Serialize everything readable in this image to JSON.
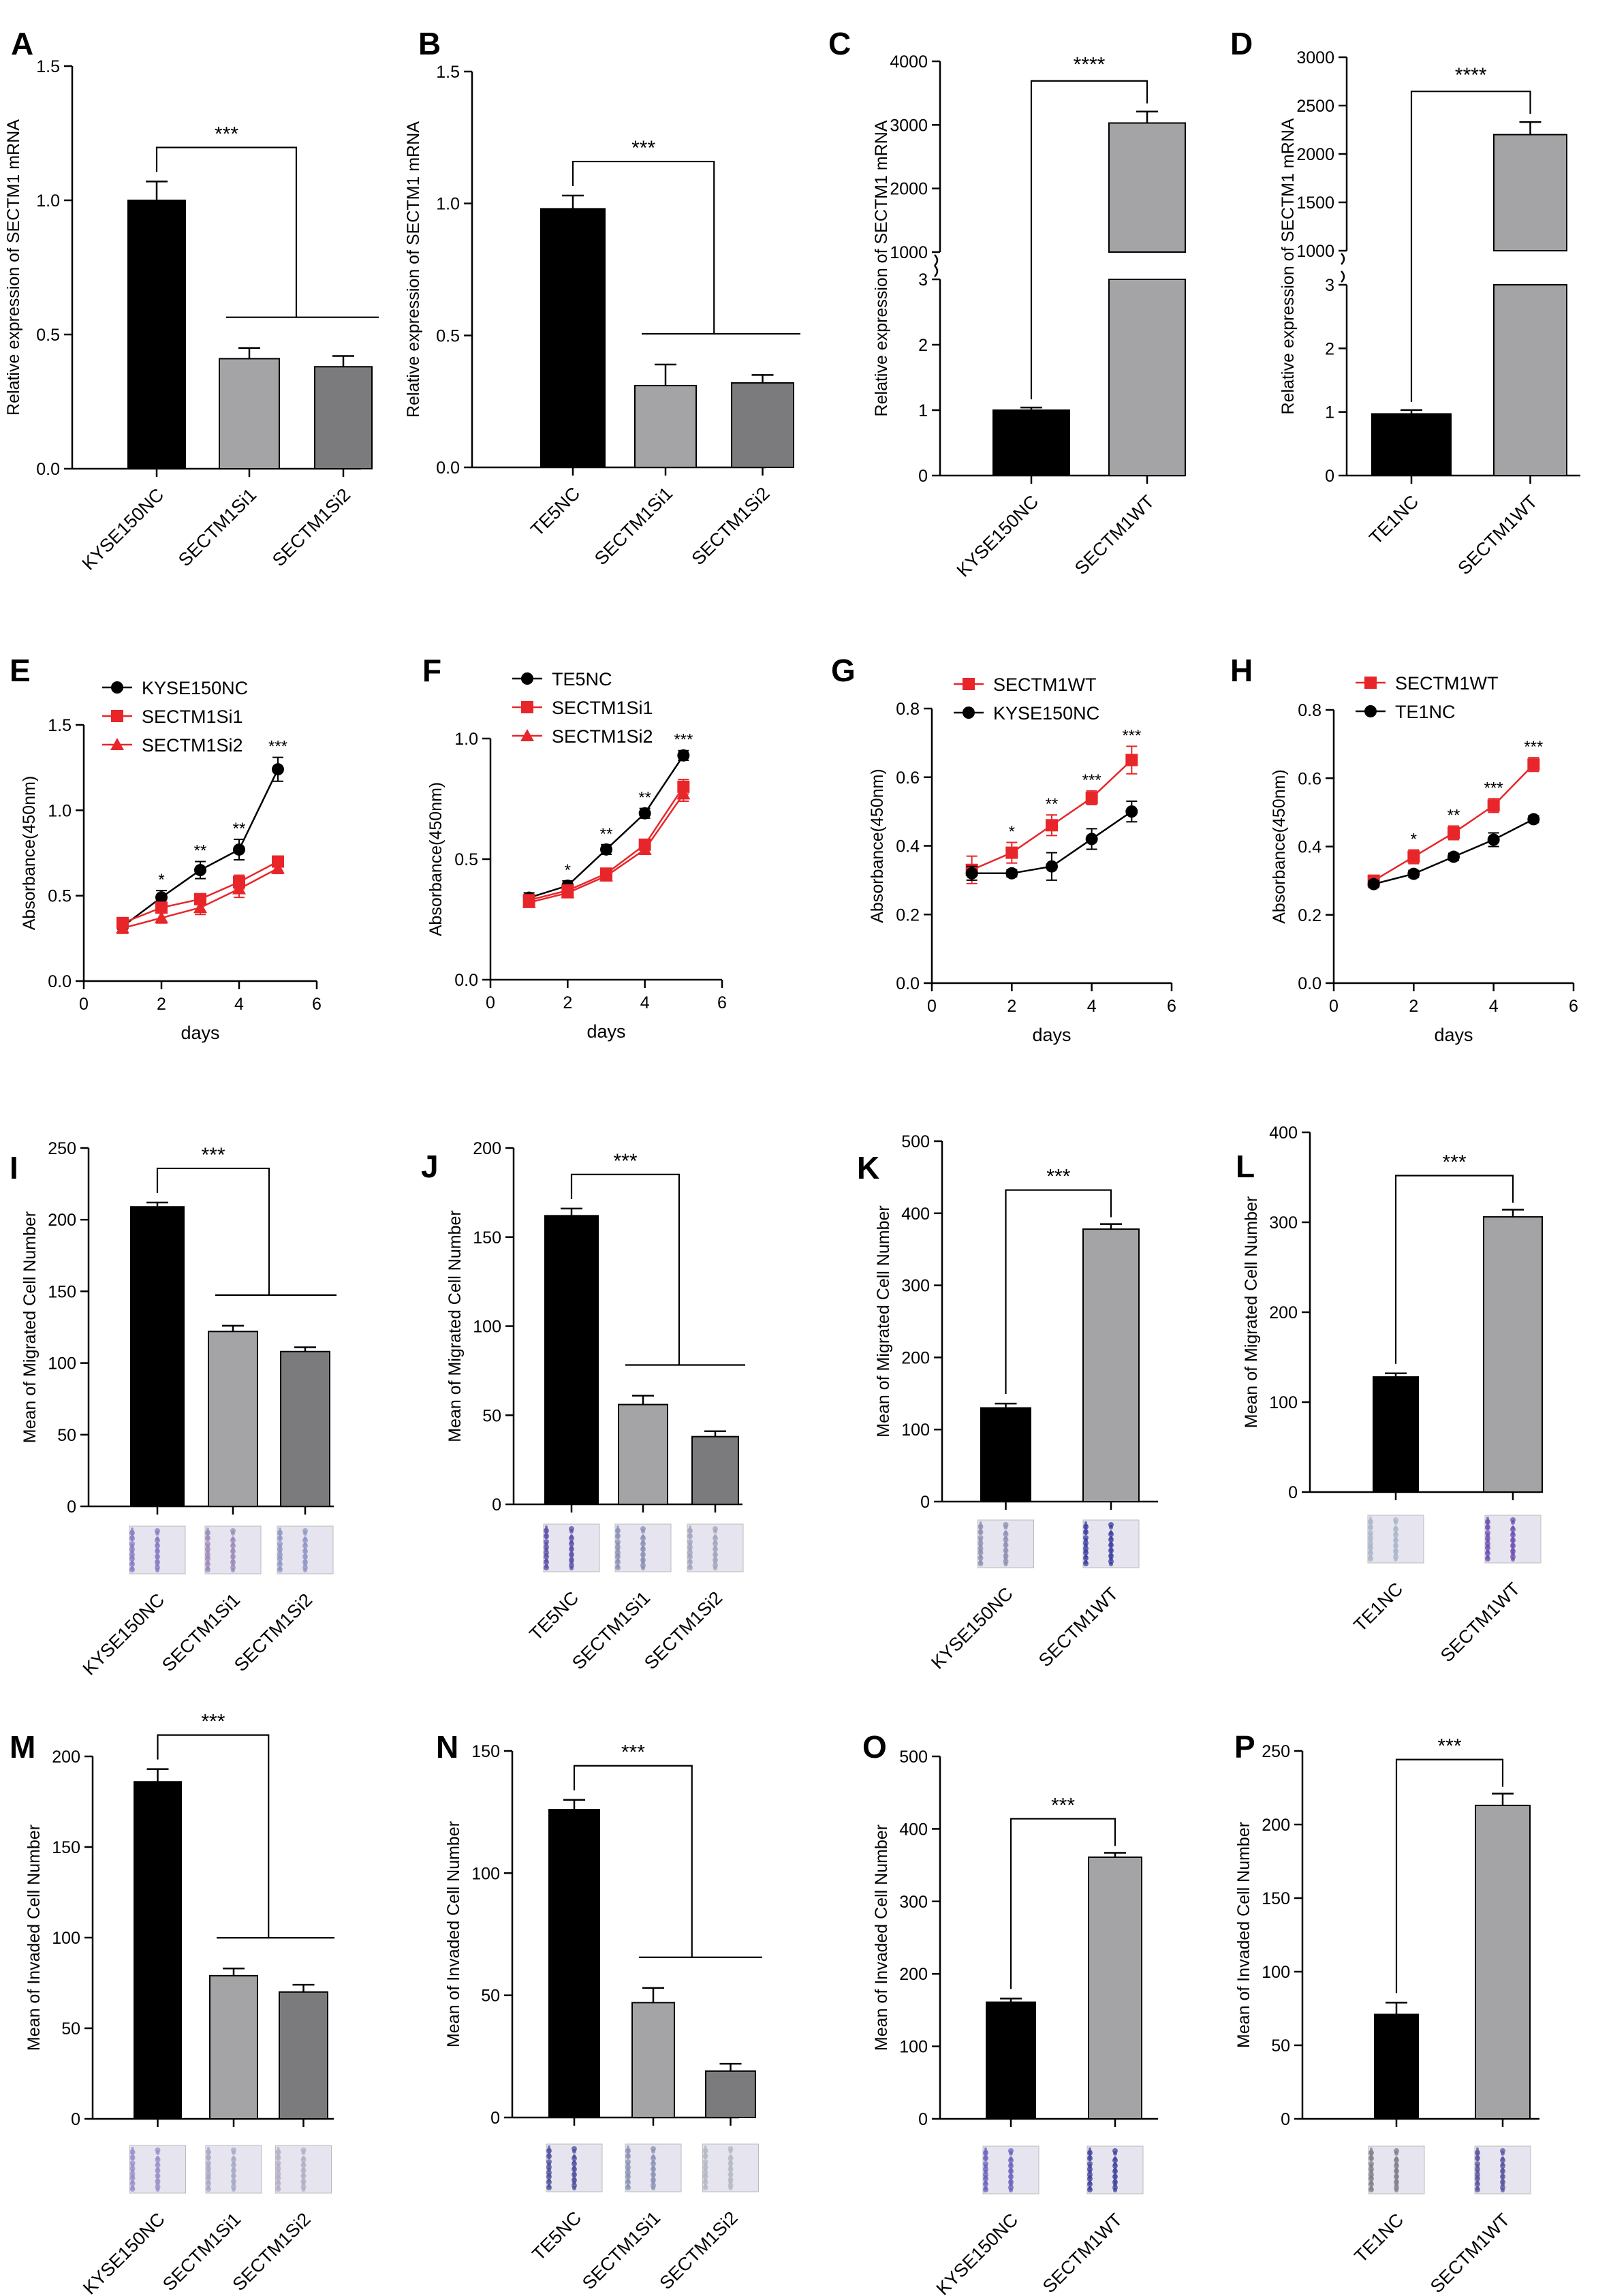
{
  "colors": {
    "black": "#000000",
    "gray_light": "#a4a4a6",
    "gray_dark": "#7b7b7d",
    "red": "#e8262a",
    "stain_purple": "#6d5fb3"
  },
  "chart_data": [
    {
      "id": "A",
      "type": "bar",
      "title": "A",
      "ylabel": "Relative expression of SECTM1 mRNA",
      "categories": [
        "KYSE150NC",
        "SECTM1Si1",
        "SECTM1Si2"
      ],
      "values": [
        1.0,
        0.41,
        0.38
      ],
      "errors": [
        0.07,
        0.04,
        0.04
      ],
      "ylim": [
        0,
        1.5
      ],
      "yticks": [
        0.0,
        0.5,
        1.0,
        1.5
      ],
      "ytick_labels": [
        "0.0",
        "0.5",
        "1.0",
        "1.5"
      ],
      "significance": "***",
      "thumbnails": false
    },
    {
      "id": "B",
      "type": "bar",
      "title": "B",
      "ylabel": "Relative expression of SECTM1 mRNA",
      "categories": [
        "TE5NC",
        "SECTM1Si1",
        "SECTM1Si2"
      ],
      "values": [
        0.98,
        0.31,
        0.32
      ],
      "errors": [
        0.05,
        0.08,
        0.03
      ],
      "ylim": [
        0,
        1.5
      ],
      "yticks": [
        0.0,
        0.5,
        1.0,
        1.5
      ],
      "ytick_labels": [
        "0.0",
        "0.5",
        "1.0",
        "1.5"
      ],
      "significance": "***",
      "thumbnails": false
    },
    {
      "id": "C",
      "type": "bar",
      "title": "C",
      "ylabel": "Relative expression of SECTM1 mRNA",
      "categories": [
        "KYSE150NC",
        "SECTM1WT"
      ],
      "values": [
        1.0,
        3030
      ],
      "errors": [
        0.04,
        180
      ],
      "broken_axis": {
        "lower": [
          0,
          3
        ],
        "upper": [
          1000,
          4000
        ]
      },
      "yticks_lower": [
        0,
        1,
        2,
        3
      ],
      "yticks_upper": [
        1000,
        2000,
        3000,
        4000
      ],
      "ytick_labels_lower": [
        "0",
        "1",
        "2",
        "3"
      ],
      "ytick_labels_upper": [
        "1000",
        "2000",
        "3000",
        "4000"
      ],
      "significance": "****",
      "thumbnails": false
    },
    {
      "id": "D",
      "type": "bar",
      "title": "D",
      "ylabel": "Relative expression of SECTM1 mRNA",
      "categories": [
        "TE1NC",
        "SECTM1WT"
      ],
      "values": [
        0.97,
        2200
      ],
      "errors": [
        0.06,
        130
      ],
      "broken_axis": {
        "lower": [
          0,
          3
        ],
        "upper": [
          1000,
          3000
        ]
      },
      "yticks_lower": [
        0,
        1,
        2,
        3
      ],
      "yticks_upper": [
        1000,
        1500,
        2000,
        2500,
        3000
      ],
      "ytick_labels_lower": [
        "0",
        "1",
        "2",
        "3"
      ],
      "ytick_labels_upper": [
        "1000",
        "1500",
        "2000",
        "2500",
        "3000"
      ],
      "significance": "****",
      "thumbnails": false
    },
    {
      "id": "E",
      "type": "line",
      "title": "E",
      "xlabel": "days",
      "ylabel": "Absorbance(450nm)",
      "x": [
        1,
        2,
        3,
        4,
        5
      ],
      "xlim": [
        0,
        6
      ],
      "xticks": [
        0,
        2,
        4,
        6
      ],
      "xtick_labels": [
        "0",
        "2",
        "4",
        "6"
      ],
      "ylim": [
        0,
        1.5
      ],
      "yticks": [
        0.0,
        0.5,
        1.0,
        1.5
      ],
      "ytick_labels": [
        "0.0",
        "0.5",
        "1.0",
        "1.5"
      ],
      "series": [
        {
          "name": "KYSE150NC",
          "color": "#000000",
          "marker": "circle",
          "values": [
            0.32,
            0.49,
            0.65,
            0.77,
            1.24
          ],
          "errors": [
            0.03,
            0.04,
            0.05,
            0.06,
            0.07
          ]
        },
        {
          "name": "SECTM1Si1",
          "color": "#e8262a",
          "marker": "square",
          "values": [
            0.34,
            0.43,
            0.48,
            0.58,
            0.7
          ],
          "errors": [
            0.03,
            0.03,
            0.03,
            0.04,
            0.03
          ]
        },
        {
          "name": "SECTM1Si2",
          "color": "#e8262a",
          "marker": "triangle",
          "values": [
            0.31,
            0.37,
            0.43,
            0.54,
            0.66
          ],
          "errors": [
            0.03,
            0.03,
            0.04,
            0.05,
            0.03
          ]
        }
      ],
      "annotations": [
        {
          "x": 2,
          "text": "*"
        },
        {
          "x": 3,
          "text": "**"
        },
        {
          "x": 4,
          "text": "**"
        },
        {
          "x": 5,
          "text": "***"
        }
      ]
    },
    {
      "id": "F",
      "type": "line",
      "title": "F",
      "xlabel": "days",
      "ylabel": "Absorbance(450nm)",
      "x": [
        1,
        2,
        3,
        4,
        5
      ],
      "xlim": [
        0,
        6
      ],
      "xticks": [
        0,
        2,
        4,
        6
      ],
      "xtick_labels": [
        "0",
        "2",
        "4",
        "6"
      ],
      "ylim": [
        0,
        1.0
      ],
      "yticks": [
        0.0,
        0.5,
        1.0
      ],
      "ytick_labels": [
        "0.0",
        "0.5",
        "1.0"
      ],
      "series": [
        {
          "name": "TE5NC",
          "color": "#000000",
          "marker": "circle",
          "values": [
            0.34,
            0.39,
            0.54,
            0.69,
            0.93
          ],
          "errors": [
            0.02,
            0.02,
            0.02,
            0.02,
            0.02
          ]
        },
        {
          "name": "SECTM1Si1",
          "color": "#e8262a",
          "marker": "square",
          "values": [
            0.33,
            0.37,
            0.44,
            0.56,
            0.8
          ],
          "errors": [
            0.02,
            0.02,
            0.02,
            0.02,
            0.03
          ]
        },
        {
          "name": "SECTM1Si2",
          "color": "#e8262a",
          "marker": "triangle",
          "values": [
            0.32,
            0.36,
            0.43,
            0.54,
            0.77
          ],
          "errors": [
            0.02,
            0.02,
            0.02,
            0.02,
            0.03
          ]
        }
      ],
      "annotations": [
        {
          "x": 2,
          "text": "*"
        },
        {
          "x": 3,
          "text": "**"
        },
        {
          "x": 4,
          "text": "**"
        },
        {
          "x": 5,
          "text": "***"
        }
      ]
    },
    {
      "id": "G",
      "type": "line",
      "title": "G",
      "xlabel": "days",
      "ylabel": "Absorbance(450nm)",
      "x": [
        1,
        2,
        3,
        4,
        5
      ],
      "xlim": [
        0,
        6
      ],
      "xticks": [
        0,
        2,
        4,
        6
      ],
      "xtick_labels": [
        "0",
        "2",
        "4",
        "6"
      ],
      "ylim": [
        0,
        0.8
      ],
      "yticks": [
        0.0,
        0.2,
        0.4,
        0.6,
        0.8
      ],
      "ytick_labels": [
        "0.0",
        "0.2",
        "0.4",
        "0.6",
        "0.8"
      ],
      "series": [
        {
          "name": "SECTM1WT",
          "color": "#e8262a",
          "marker": "square",
          "values": [
            0.33,
            0.38,
            0.46,
            0.54,
            0.65
          ],
          "errors": [
            0.04,
            0.03,
            0.03,
            0.02,
            0.04
          ]
        },
        {
          "name": "KYSE150NC",
          "color": "#000000",
          "marker": "circle",
          "values": [
            0.32,
            0.32,
            0.34,
            0.42,
            0.5
          ],
          "errors": [
            0.02,
            0.01,
            0.04,
            0.03,
            0.03
          ]
        }
      ],
      "annotations": [
        {
          "x": 2,
          "text": "*"
        },
        {
          "x": 3,
          "text": "**"
        },
        {
          "x": 4,
          "text": "***"
        },
        {
          "x": 5,
          "text": "***"
        }
      ]
    },
    {
      "id": "H",
      "type": "line",
      "title": "H",
      "xlabel": "days",
      "ylabel": "Absorbance(450nm)",
      "x": [
        1,
        2,
        3,
        4,
        5
      ],
      "xlim": [
        0,
        6
      ],
      "xticks": [
        0,
        2,
        4,
        6
      ],
      "xtick_labels": [
        "0",
        "2",
        "4",
        "6"
      ],
      "ylim": [
        0,
        0.8
      ],
      "yticks": [
        0.0,
        0.2,
        0.4,
        0.6,
        0.8
      ],
      "ytick_labels": [
        "0.0",
        "0.2",
        "0.4",
        "0.6",
        "0.8"
      ],
      "series": [
        {
          "name": "SECTM1WT",
          "color": "#e8262a",
          "marker": "square",
          "values": [
            0.3,
            0.37,
            0.44,
            0.52,
            0.64
          ],
          "errors": [
            0.01,
            0.02,
            0.02,
            0.02,
            0.02
          ]
        },
        {
          "name": "TE1NC",
          "color": "#000000",
          "marker": "circle",
          "values": [
            0.29,
            0.32,
            0.37,
            0.42,
            0.48
          ],
          "errors": [
            0.01,
            0.01,
            0.01,
            0.02,
            0.01
          ]
        }
      ],
      "annotations": [
        {
          "x": 2,
          "text": "*"
        },
        {
          "x": 3,
          "text": "**"
        },
        {
          "x": 4,
          "text": "***"
        },
        {
          "x": 5,
          "text": "***"
        }
      ]
    },
    {
      "id": "I",
      "type": "bar",
      "title": "I",
      "ylabel": "Mean of Migrated Cell Number",
      "categories": [
        "KYSE150NC",
        "SECTM1Si1",
        "SECTM1Si2"
      ],
      "values": [
        209,
        122,
        108
      ],
      "errors": [
        3,
        4,
        3
      ],
      "ylim": [
        0,
        250
      ],
      "yticks": [
        0,
        50,
        100,
        150,
        200,
        250
      ],
      "ytick_labels": [
        "0",
        "50",
        "100",
        "150",
        "200",
        "250"
      ],
      "significance": "***",
      "thumbnails": true,
      "thumb_colors": [
        "#8879c4",
        "#9b8aba",
        "#8f96c6"
      ]
    },
    {
      "id": "J",
      "type": "bar",
      "title": "J",
      "ylabel": "Mean of Migrated Cell Number",
      "categories": [
        "TE5NC",
        "SECTM1Si1",
        "SECTM1Si2"
      ],
      "values": [
        162,
        56,
        38
      ],
      "errors": [
        4,
        5,
        3
      ],
      "ylim": [
        0,
        200
      ],
      "yticks": [
        0,
        50,
        100,
        150,
        200
      ],
      "ytick_labels": [
        "0",
        "50",
        "100",
        "150",
        "200"
      ],
      "significance": "***",
      "thumbnails": true,
      "thumb_colors": [
        "#5a4fa8",
        "#8a8fb4",
        "#a1a4bc"
      ]
    },
    {
      "id": "K",
      "type": "bar",
      "title": "K",
      "ylabel": "Mean of Migrated Cell Number",
      "categories": [
        "KYSE150NC",
        "SECTM1WT"
      ],
      "values": [
        130,
        378
      ],
      "errors": [
        6,
        7
      ],
      "ylim": [
        0,
        500
      ],
      "yticks": [
        0,
        100,
        200,
        300,
        400,
        500
      ],
      "ytick_labels": [
        "0",
        "100",
        "200",
        "300",
        "400",
        "500"
      ],
      "significance": "***",
      "thumbnails": true,
      "thumb_colors": [
        "#8d8fb2",
        "#3c3fa2"
      ]
    },
    {
      "id": "L",
      "type": "bar",
      "title": "L",
      "ylabel": "Mean of Migrated Cell Number",
      "categories": [
        "TE1NC",
        "SECTM1WT"
      ],
      "values": [
        128,
        306
      ],
      "errors": [
        4,
        8
      ],
      "ylim": [
        0,
        400
      ],
      "yticks": [
        0,
        100,
        200,
        300,
        400
      ],
      "ytick_labels": [
        "0",
        "100",
        "200",
        "300",
        "400"
      ],
      "significance": "***",
      "thumbnails": true,
      "thumb_colors": [
        "#a9b6c8",
        "#6c4fb2"
      ]
    },
    {
      "id": "M",
      "type": "bar",
      "title": "M",
      "ylabel": "Mean of Invaded Cell Number",
      "categories": [
        "KYSE150NC",
        "SECTM1Si1",
        "SECTM1Si2"
      ],
      "values": [
        186,
        79,
        70
      ],
      "errors": [
        7,
        4,
        4
      ],
      "ylim": [
        0,
        200
      ],
      "yticks": [
        0,
        50,
        100,
        150,
        200
      ],
      "ytick_labels": [
        "0",
        "50",
        "100",
        "150",
        "200"
      ],
      "significance": "***",
      "thumbnails": true,
      "thumb_colors": [
        "#9a8dc8",
        "#a6a8c6",
        "#b6aec4"
      ]
    },
    {
      "id": "N",
      "type": "bar",
      "title": "N",
      "ylabel": "Mean of Invaded Cell Number",
      "categories": [
        "TE5NC",
        "SECTM1Si1",
        "SECTM1Si2"
      ],
      "values": [
        126,
        47,
        19
      ],
      "errors": [
        4,
        6,
        3
      ],
      "ylim": [
        0,
        150
      ],
      "yticks": [
        0,
        50,
        100,
        150
      ],
      "ytick_labels": [
        "0",
        "50",
        "100",
        "150"
      ],
      "significance": "***",
      "thumbnails": true,
      "thumb_colors": [
        "#4c4f9c",
        "#8a92b6",
        "#b3b8c4"
      ]
    },
    {
      "id": "O",
      "type": "bar",
      "title": "O",
      "ylabel": "Mean of Invaded Cell Number",
      "categories": [
        "KYSE150NC",
        "SECTM1WT"
      ],
      "values": [
        161,
        361
      ],
      "errors": [
        5,
        6
      ],
      "ylim": [
        0,
        500
      ],
      "yticks": [
        0,
        100,
        200,
        300,
        400,
        500
      ],
      "ytick_labels": [
        "0",
        "100",
        "200",
        "300",
        "400",
        "500"
      ],
      "significance": "***",
      "thumbnails": true,
      "thumb_colors": [
        "#6a62c0",
        "#40429e"
      ]
    },
    {
      "id": "P",
      "type": "bar",
      "title": "P",
      "ylabel": "Mean of Invaded Cell Number",
      "categories": [
        "TE1NC",
        "SECTM1WT"
      ],
      "values": [
        71,
        213
      ],
      "errors": [
        8,
        8
      ],
      "ylim": [
        0,
        250
      ],
      "yticks": [
        0,
        50,
        100,
        150,
        200,
        250
      ],
      "ytick_labels": [
        "0",
        "50",
        "100",
        "150",
        "200",
        "250"
      ],
      "significance": "***",
      "thumbnails": true,
      "thumb_colors": [
        "#7c7f86",
        "#58549e"
      ]
    }
  ]
}
